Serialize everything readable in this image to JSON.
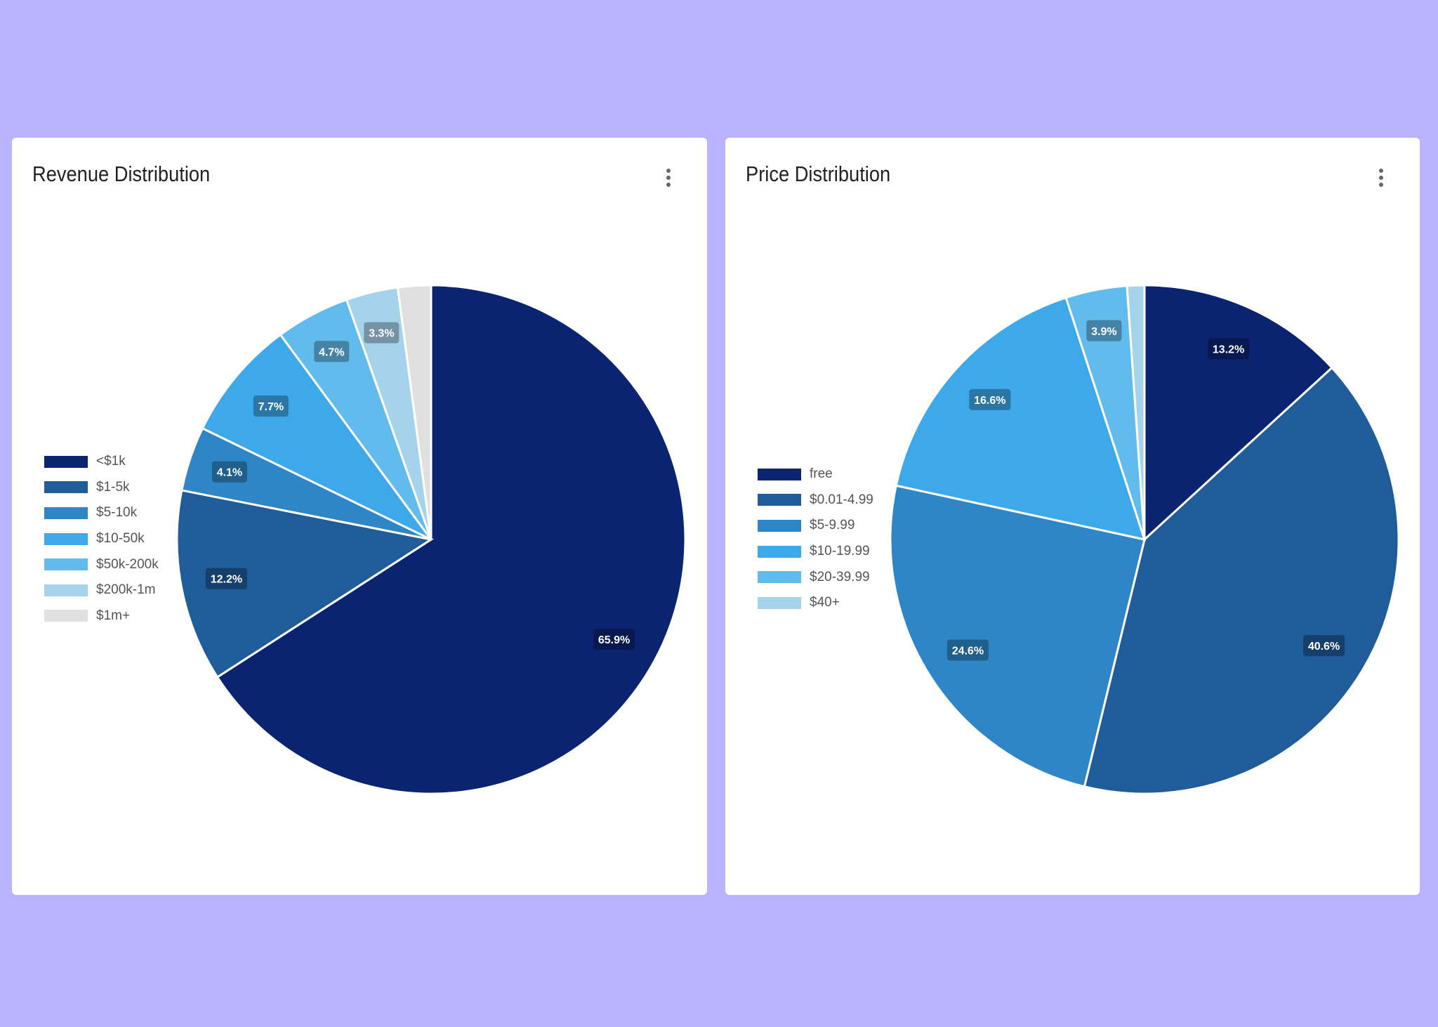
{
  "chart_data": [
    {
      "type": "pie",
      "title": "Revenue Distribution",
      "legend_position": "left",
      "categories": [
        "<$1k",
        "$1-5k",
        "$5-10k",
        "$10-50k",
        "$50k-200k",
        "$200k-1m",
        "$1m+"
      ],
      "values": [
        65.9,
        12.2,
        4.1,
        7.7,
        4.7,
        3.3,
        2.1
      ],
      "labels": [
        "65.9%",
        "12.2%",
        "4.1%",
        "7.7%",
        "4.7%",
        "3.3%",
        ""
      ],
      "colors": [
        "#0a2472",
        "#1f5c99",
        "#2e86c6",
        "#3da9eb",
        "#62bbed",
        "#a6d3ec",
        "#e0e0e0"
      ]
    },
    {
      "type": "pie",
      "title": "Price Distribution",
      "legend_position": "left",
      "categories": [
        "free",
        "$0.01-4.99",
        "$5-9.99",
        "$10-19.99",
        "$20-39.99",
        "$40+"
      ],
      "values": [
        13.2,
        40.6,
        24.6,
        16.6,
        3.9,
        1.1
      ],
      "labels": [
        "13.2%",
        "40.6%",
        "24.6%",
        "16.6%",
        "3.9%",
        ""
      ],
      "colors": [
        "#0a2472",
        "#1f5c99",
        "#2e86c6",
        "#3da9eb",
        "#62bbed",
        "#a6d3ec"
      ]
    }
  ],
  "page": {
    "background": "#b9b3fe",
    "menu_icon": "more-vertical-icon"
  }
}
